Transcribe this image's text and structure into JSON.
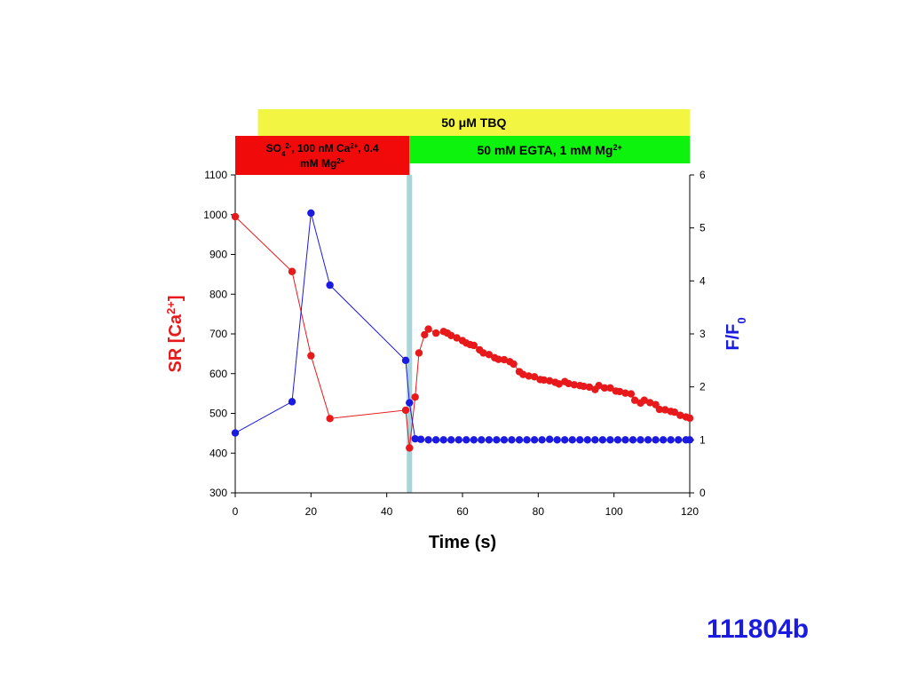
{
  "colors": {
    "tbq_bar": "#f2f541",
    "sulfate_bar": "#f00a0a",
    "egta_bar": "#0ef30e",
    "marker_line": "#a9d4d9",
    "red_series": "#e8191a",
    "blue_series": "#1a1ae0"
  },
  "figure_id": "111804b",
  "bars": {
    "tbq": {
      "label": "50 μM TBQ",
      "x_start": 6,
      "x_end": 120
    },
    "sulfate": {
      "label_line1": "SO",
      "sub": "4",
      "sup1": "2-",
      "label_line1b": ", 100 nM Ca",
      "sup2": "2+",
      "label_line1c": ", 0.4",
      "label_line2": "mM Mg",
      "sup3": "2+",
      "x_start": 0,
      "x_end": 46
    },
    "egta": {
      "label": "50 mM EGTA, 1 mM Mg",
      "sup": "2+",
      "x_start": 46,
      "x_end": 120
    }
  },
  "chart_data": {
    "type": "line",
    "xlabel": "Time (s)",
    "ylabel_left": {
      "base": "SR [Ca",
      "sup": "2+",
      "close": "]"
    },
    "ylabel_right": {
      "base": "F/F",
      "sub": "0"
    },
    "xlim": [
      0,
      120
    ],
    "ylim_left": [
      300,
      1100
    ],
    "ylim_right": [
      0,
      6
    ],
    "x_ticks": [
      0,
      20,
      40,
      60,
      80,
      100,
      120
    ],
    "y_left_ticks": [
      300,
      400,
      500,
      600,
      700,
      800,
      900,
      1000,
      1100
    ],
    "y_right_ticks": [
      0,
      1,
      2,
      3,
      4,
      5,
      6
    ],
    "marker_time": 46,
    "series": [
      {
        "axis": "left",
        "color": "#e8191a",
        "points": [
          [
            0,
            995
          ],
          [
            15,
            857
          ],
          [
            20,
            645
          ],
          [
            25,
            487
          ],
          [
            45,
            508
          ],
          [
            46,
            413
          ],
          [
            47.5,
            541
          ],
          [
            48.5,
            652
          ],
          [
            50,
            698
          ],
          [
            51,
            712
          ],
          [
            53,
            702
          ],
          [
            55,
            706
          ],
          [
            56,
            702
          ],
          [
            57,
            696
          ],
          [
            58.5,
            690
          ],
          [
            60,
            683
          ],
          [
            61,
            677
          ],
          [
            62,
            673
          ],
          [
            63,
            671
          ],
          [
            64.5,
            660
          ],
          [
            65.5,
            652
          ],
          [
            67,
            648
          ],
          [
            68.5,
            640
          ],
          [
            69.5,
            636
          ],
          [
            71,
            635
          ],
          [
            72.5,
            630
          ],
          [
            73.5,
            624
          ],
          [
            75,
            605
          ],
          [
            76,
            598
          ],
          [
            77.5,
            594
          ],
          [
            79,
            592
          ],
          [
            80.5,
            585
          ],
          [
            81.5,
            584
          ],
          [
            83,
            582
          ],
          [
            84.5,
            578
          ],
          [
            85.5,
            574
          ],
          [
            87,
            580
          ],
          [
            88,
            575
          ],
          [
            89.5,
            572
          ],
          [
            91,
            570
          ],
          [
            92,
            568
          ],
          [
            93.5,
            566
          ],
          [
            95,
            560
          ],
          [
            96,
            570
          ],
          [
            97.5,
            564
          ],
          [
            99,
            564
          ],
          [
            100.5,
            556
          ],
          [
            101.5,
            555
          ],
          [
            103,
            551
          ],
          [
            104.5,
            549
          ],
          [
            105.5,
            533
          ],
          [
            107,
            526
          ],
          [
            108,
            533
          ],
          [
            109.5,
            527
          ],
          [
            111,
            522
          ],
          [
            112,
            510
          ],
          [
            113.5,
            509
          ],
          [
            115,
            505
          ],
          [
            116,
            503
          ],
          [
            117.5,
            495
          ],
          [
            119,
            491
          ],
          [
            120,
            488
          ]
        ]
      },
      {
        "axis": "right",
        "color": "#1a1ae0",
        "points": [
          [
            0,
            1.13
          ],
          [
            15,
            1.72
          ],
          [
            20,
            5.28
          ],
          [
            25,
            3.92
          ],
          [
            45,
            2.5
          ],
          [
            46,
            1.7
          ],
          [
            47.5,
            1.02
          ],
          [
            49,
            1.01
          ],
          [
            51,
            1.0
          ],
          [
            53,
            1.0
          ],
          [
            55,
            1.0
          ],
          [
            57,
            1.0
          ],
          [
            59,
            1.0
          ],
          [
            61,
            1.0
          ],
          [
            63,
            1.0
          ],
          [
            65,
            1.0
          ],
          [
            67,
            1.0
          ],
          [
            69,
            1.0
          ],
          [
            71,
            1.0
          ],
          [
            73,
            1.0
          ],
          [
            75,
            1.0
          ],
          [
            77,
            1.0
          ],
          [
            79,
            1.0
          ],
          [
            81,
            1.0
          ],
          [
            83,
            1.01
          ],
          [
            85,
            1.0
          ],
          [
            87,
            1.0
          ],
          [
            89,
            1.0
          ],
          [
            91,
            1.0
          ],
          [
            93,
            1.0
          ],
          [
            95,
            1.0
          ],
          [
            97,
            1.0
          ],
          [
            99,
            1.0
          ],
          [
            101,
            1.0
          ],
          [
            103,
            1.0
          ],
          [
            105,
            1.0
          ],
          [
            107,
            1.0
          ],
          [
            109,
            1.0
          ],
          [
            111,
            1.0
          ],
          [
            113,
            1.0
          ],
          [
            115,
            1.0
          ],
          [
            117,
            1.0
          ],
          [
            119,
            1.0
          ],
          [
            120,
            1.0
          ]
        ]
      }
    ]
  }
}
